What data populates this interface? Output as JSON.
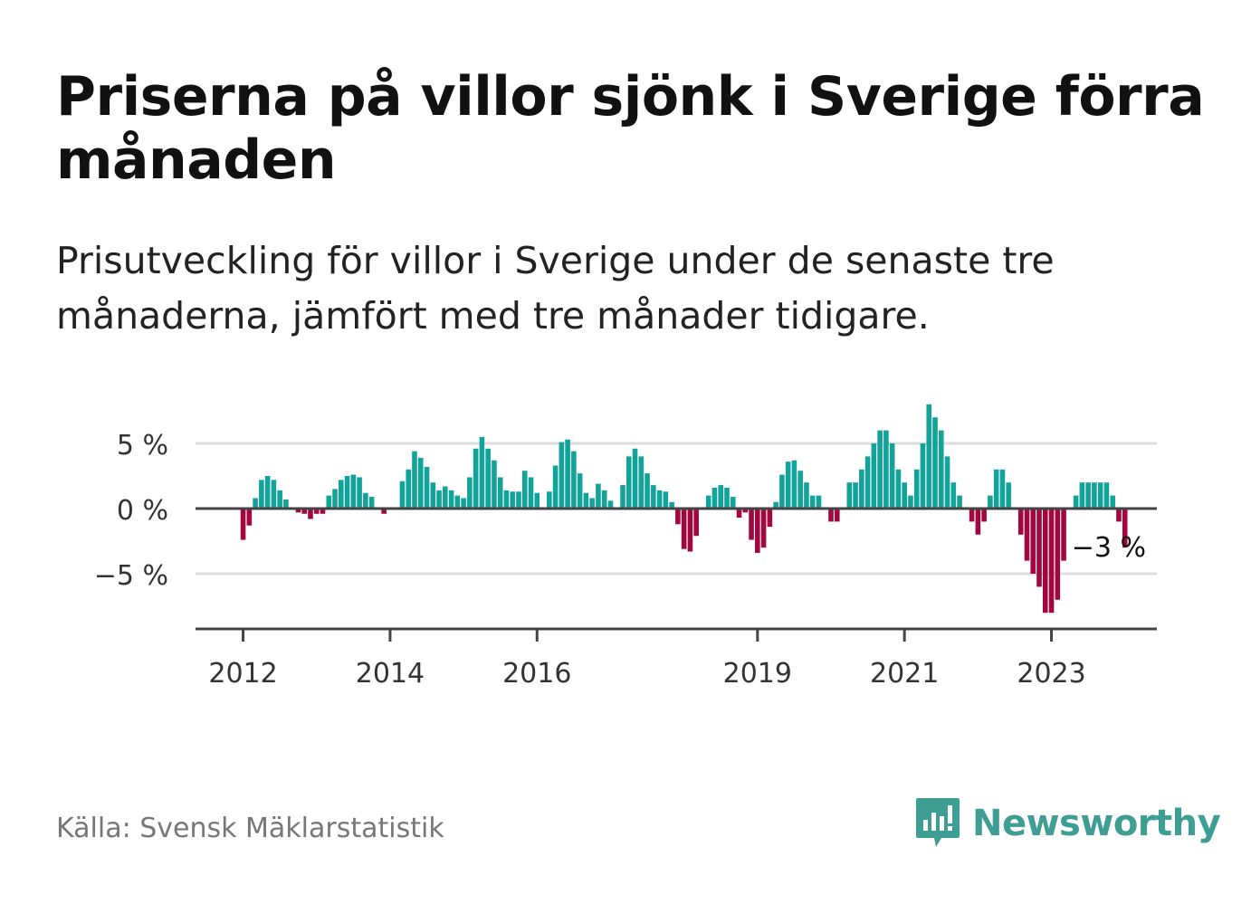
{
  "title": "Priserna på villor sjönk i Sverige förra månaden",
  "subtitle": "Prisutveckling för villor i Sverige under de senaste tre månaderna, jämfört med tre månader tidigare.",
  "source": "Källa: Svensk Mäklarstatistik",
  "brand": "Newsworthy",
  "colors": {
    "positive": "#12a39a",
    "negative": "#a3073f",
    "grid": "#dddddd",
    "zero_line": "#444444",
    "brand": "#3e9e93"
  },
  "chart_data": {
    "type": "bar",
    "y_unit": "%",
    "ylim": [
      -9,
      9.5
    ],
    "yticks": [
      {
        "value": 5,
        "label": "5 %"
      },
      {
        "value": 0,
        "label": "0 %"
      },
      {
        "value": -5,
        "label": "−5 %"
      }
    ],
    "xticks": [
      {
        "index": 4,
        "label": "2012"
      },
      {
        "index": 28,
        "label": "2014"
      },
      {
        "index": 52,
        "label": "2016"
      },
      {
        "index": 88,
        "label": "2019"
      },
      {
        "index": 112,
        "label": "2021"
      },
      {
        "index": 136,
        "label": "2023"
      }
    ],
    "last_value_label": "−3 %",
    "grid": true,
    "values": [
      0,
      0,
      0,
      0,
      -2.4,
      -1.3,
      0.8,
      2.2,
      2.5,
      2.2,
      1.4,
      0.7,
      0,
      -0.3,
      -0.4,
      -0.8,
      -0.4,
      -0.4,
      1.0,
      1.5,
      2.2,
      2.5,
      2.6,
      2.4,
      1.2,
      0.9,
      0,
      -0.4,
      0,
      0,
      2.1,
      3.0,
      4.4,
      3.9,
      3.2,
      2.0,
      1.4,
      1.7,
      1.4,
      1.0,
      0.8,
      2.4,
      4.6,
      5.5,
      4.6,
      3.7,
      2.4,
      1.4,
      1.3,
      1.3,
      2.9,
      2.4,
      1.2,
      0,
      1.3,
      3.3,
      5.1,
      5.3,
      4.4,
      2.7,
      1.2,
      0.8,
      1.9,
      1.4,
      0.6,
      0,
      1.8,
      4.0,
      4.6,
      4.0,
      2.7,
      1.8,
      1.4,
      1.3,
      0.5,
      -1.2,
      -3.1,
      -3.3,
      -2.1,
      0,
      1.0,
      1.6,
      1.8,
      1.6,
      0.9,
      -0.7,
      -0.3,
      -2.4,
      -3.4,
      -3.0,
      -1.4,
      0.5,
      2.6,
      3.6,
      3.7,
      2.9,
      2.0,
      1.0,
      1.0,
      0,
      -1.0,
      -1.0,
      0,
      2.0,
      2.0,
      3.0,
      4.0,
      5.0,
      6.0,
      6.0,
      5.0,
      3.0,
      2.0,
      1.0,
      3.0,
      5.0,
      8.0,
      7.0,
      6.0,
      4.0,
      2.0,
      1.0,
      0,
      -1.0,
      -2.0,
      -1.0,
      1.0,
      3.0,
      3.0,
      2.0,
      0,
      -2.0,
      -4.0,
      -5.0,
      -6.0,
      -8.0,
      -8.0,
      -7.0,
      -4.0,
      0,
      1.0,
      2.0,
      2.0,
      2.0,
      2.0,
      2.0,
      1.0,
      -1.0,
      -3.0
    ]
  }
}
